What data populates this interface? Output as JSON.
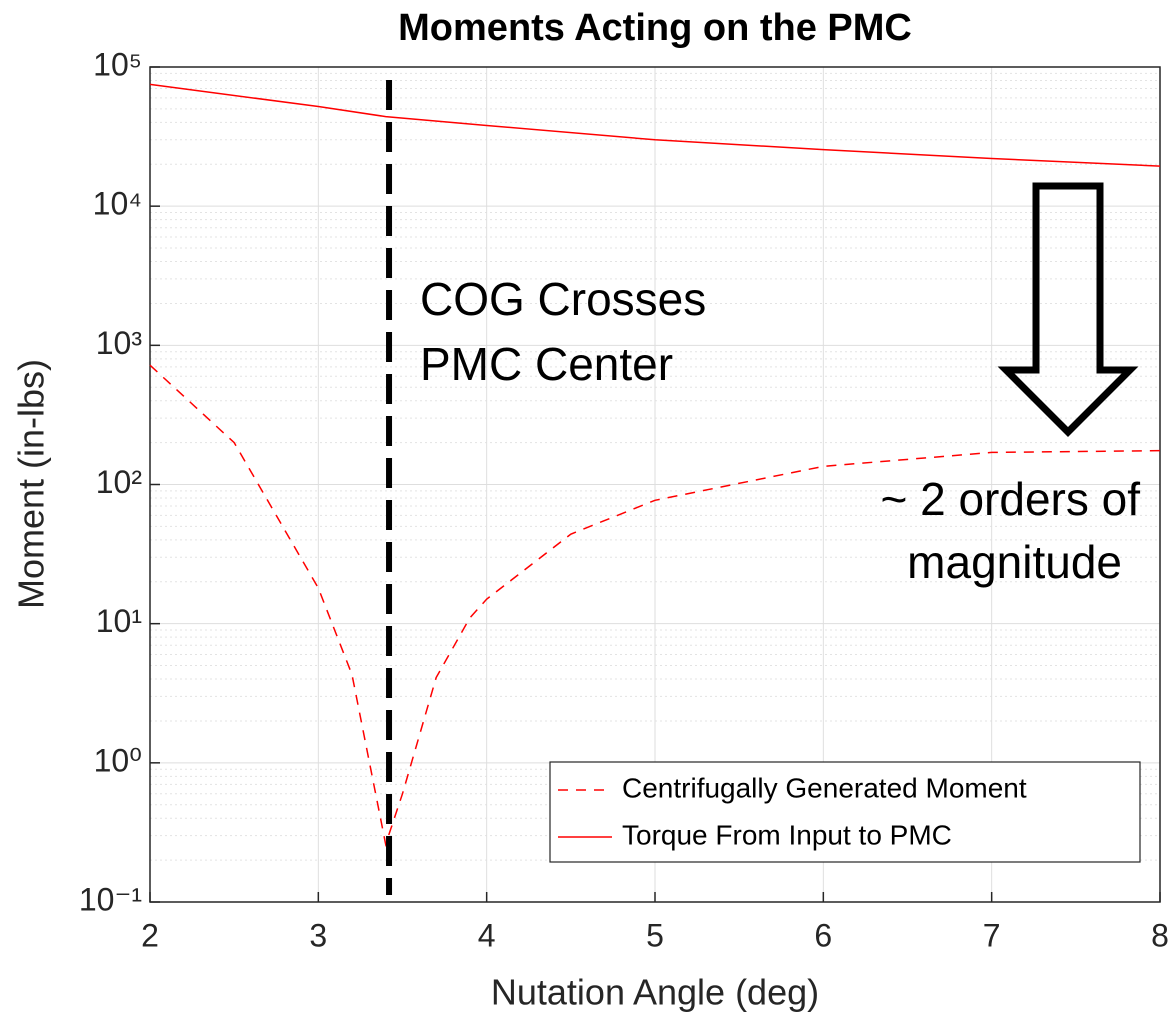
{
  "chart_data": {
    "type": "line",
    "title": "Moments Acting on the PMC",
    "x_label": "Nutation Angle (deg)",
    "y_label": "Moment (in-lbs)",
    "log_y": true,
    "grid": true,
    "minor_grid": true,
    "legend_position": "lower right",
    "xlim": [
      2,
      8
    ],
    "xticks": [
      2,
      3,
      4,
      5,
      6,
      7,
      8
    ],
    "ylim": [
      0.1,
      100000
    ],
    "yticks": [
      {
        "value": 0.1,
        "label": "10⁻¹"
      },
      {
        "value": 1,
        "label": "10⁰"
      },
      {
        "value": 10,
        "label": "10¹"
      },
      {
        "value": 100,
        "label": "10²"
      },
      {
        "value": 1000,
        "label": "10³"
      },
      {
        "value": 10000,
        "label": "10⁴"
      },
      {
        "value": 100000,
        "label": "10⁵"
      }
    ],
    "series": [
      {
        "name": "Centrifugally Generated Moment",
        "color": "#ff0000",
        "style": "dashed",
        "x": [
          2,
          2.5,
          3,
          3.2,
          3.4,
          3.5,
          3.7,
          3.9,
          4,
          4.5,
          5,
          6,
          7,
          8
        ],
        "values": [
          720,
          200,
          18,
          4.3,
          0.26,
          0.6,
          4.1,
          11,
          15,
          44,
          77,
          135,
          170,
          175
        ]
      },
      {
        "name": "Torque From Input to PMC",
        "color": "#ff0000",
        "style": "solid",
        "x": [
          2,
          3,
          3.4,
          4,
          5,
          6,
          7,
          8
        ],
        "values": [
          75000,
          52000,
          44000,
          38000,
          30000,
          25500,
          22000,
          19400
        ]
      }
    ],
    "reference_line": {
      "x": 3.42,
      "color": "#000000"
    },
    "annotations": [
      {
        "lines": [
          "COG Crosses",
          "PMC Center"
        ]
      },
      {
        "lines": [
          "~ 2 orders of",
          "magnitude"
        ]
      }
    ]
  }
}
